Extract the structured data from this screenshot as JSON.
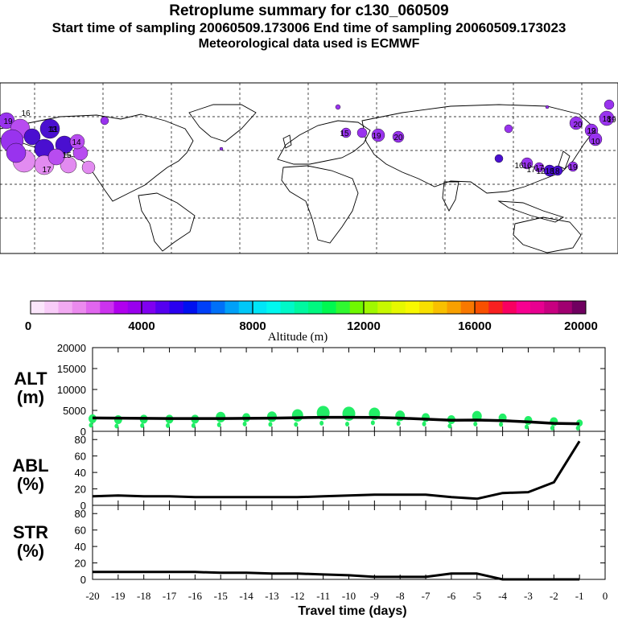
{
  "header": {
    "title": "Retroplume summary for c130_060509",
    "sampling": "Start time of sampling 20060509.173006     End time of sampling 20060509.173023",
    "met": "Meteorological data used is ECMWF"
  },
  "colorbar": {
    "label": "Altitude (m)",
    "ticks": [
      "0",
      "4000",
      "8000",
      "12000",
      "16000",
      "20000"
    ],
    "colors": [
      "#fbe6fb",
      "#f8ccf8",
      "#f2aaf2",
      "#eb8aee",
      "#e066ee",
      "#cc33ee",
      "#b000ee",
      "#9900ee",
      "#8000f0",
      "#5500f0",
      "#2a00f0",
      "#0010f0",
      "#0040f8",
      "#0070f8",
      "#00a0f8",
      "#00c8f8",
      "#00e6f8",
      "#00f8f0",
      "#00f8c8",
      "#00f8a0",
      "#00f880",
      "#00f850",
      "#30f830",
      "#70f800",
      "#a0f800",
      "#c8f800",
      "#e6f800",
      "#f8f800",
      "#f8e000",
      "#f8c000",
      "#f8a000",
      "#f87800",
      "#f85000",
      "#f82020",
      "#f80060",
      "#f80090",
      "#e80090",
      "#c80080",
      "#a00070",
      "#700060"
    ]
  },
  "map": {
    "labels": [
      "16",
      "19",
      "11",
      "14",
      "13",
      "15",
      "10",
      "19",
      "17",
      "12",
      "16",
      "17",
      "18",
      "19",
      "20",
      "15",
      "16",
      "17",
      "18",
      "19",
      "20",
      "19",
      "12",
      "18"
    ],
    "colors": {
      "purple": "#9933ee",
      "violet": "#b84cf0",
      "pink": "#e28bf0",
      "blue": "#4a0fd0"
    }
  },
  "chart_data": [
    {
      "type": "scatter",
      "panel": "ALT",
      "ylabel": "ALT (m)",
      "ylim": [
        0,
        20000
      ],
      "yticks": [
        0,
        5000,
        10000,
        15000,
        20000
      ],
      "x": [
        -20,
        -19,
        -18,
        -17,
        -16,
        -15,
        -14,
        -13,
        -12,
        -11,
        -10,
        -9,
        -8,
        -7,
        -6,
        -5,
        -4,
        -3,
        -2,
        -1
      ],
      "mean_line": [
        3200,
        3150,
        3100,
        3050,
        3050,
        3050,
        3100,
        3150,
        3250,
        3350,
        3350,
        3300,
        3150,
        2900,
        2650,
        2700,
        2550,
        2250,
        1900,
        1800
      ],
      "cluster_alt": [
        3000,
        2800,
        2900,
        2900,
        2900,
        3400,
        3300,
        3500,
        3800,
        4400,
        4200,
        4200,
        3700,
        3300,
        2800,
        3600,
        3200,
        2600,
        2300,
        2000
      ],
      "cluster_size": [
        5,
        5,
        5,
        5,
        5,
        6,
        5,
        6,
        7,
        8,
        8,
        7,
        6,
        5,
        5,
        6,
        5,
        5,
        5,
        4
      ],
      "marker_color": "#22ee66"
    },
    {
      "type": "line",
      "panel": "ABL",
      "ylabel": "ABL (%)",
      "ylim": [
        0,
        90
      ],
      "yticks": [
        0,
        20,
        40,
        60,
        80
      ],
      "x": [
        -20,
        -19,
        -18,
        -17,
        -16,
        -15,
        -14,
        -13,
        -12,
        -11,
        -10,
        -9,
        -8,
        -7,
        -6,
        -5,
        -4,
        -3,
        -2,
        -1
      ],
      "values": [
        11,
        12,
        11,
        11,
        10,
        10,
        10,
        10,
        10,
        11,
        12,
        13,
        13,
        13,
        10,
        8,
        15,
        16,
        28,
        78
      ]
    },
    {
      "type": "line",
      "panel": "STR",
      "ylabel": "STR (%)",
      "ylim": [
        0,
        90
      ],
      "yticks": [
        0,
        20,
        40,
        60,
        80
      ],
      "x": [
        -20,
        -19,
        -18,
        -17,
        -16,
        -15,
        -14,
        -13,
        -12,
        -11,
        -10,
        -9,
        -8,
        -7,
        -6,
        -5,
        -4,
        -3,
        -2,
        -1
      ],
      "values": [
        9,
        9,
        9,
        9,
        9,
        8,
        8,
        7,
        7,
        6,
        5,
        3,
        3,
        3,
        7,
        7,
        0,
        0,
        0,
        0
      ],
      "xlabel": "Travel time (days)",
      "xlim": [
        -20,
        0
      ],
      "xticks": [
        "-20",
        "-19",
        "-18",
        "-17",
        "-16",
        "-15",
        "-14",
        "-13",
        "-12",
        "-11",
        "-10",
        "-9",
        "-8",
        "-7",
        "-6",
        "-5",
        "-4",
        "-3",
        "-2",
        "-1",
        "0"
      ]
    }
  ],
  "panel_labels": {
    "alt_1": "ALT",
    "alt_2": "(m)",
    "abl_1": "ABL",
    "abl_2": "(%)",
    "str_1": "STR",
    "str_2": "(%)"
  }
}
